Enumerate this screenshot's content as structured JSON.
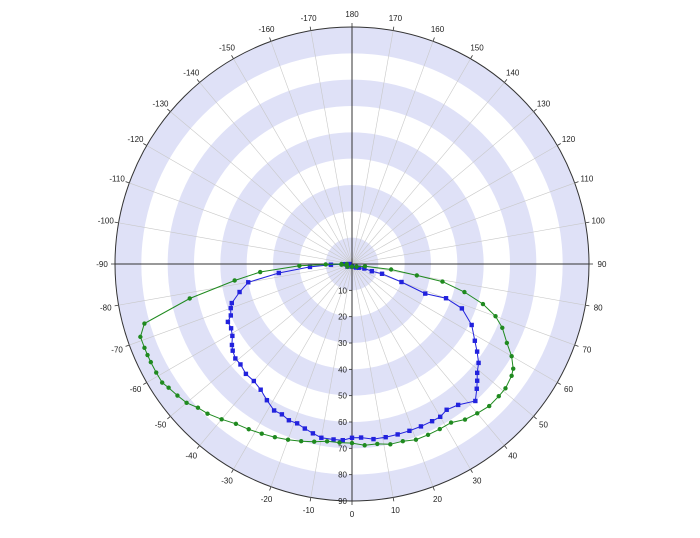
{
  "chart_data": {
    "type": "polar-line",
    "title": "",
    "angular_axis": {
      "zero_direction": "bottom",
      "direction": "counterclockwise for positive",
      "ticks": [
        -170,
        -160,
        -150,
        -140,
        -130,
        -120,
        -110,
        -100,
        -90,
        -80,
        -70,
        -60,
        -50,
        -40,
        -30,
        -20,
        -10,
        0,
        10,
        20,
        30,
        40,
        50,
        60,
        70,
        80,
        90,
        100,
        110,
        120,
        130,
        140,
        150,
        160,
        170,
        180
      ],
      "tick_labels": [
        "-170",
        "-160",
        "-150",
        "-140",
        "-130",
        "-120",
        "-110",
        "-100",
        "-90",
        "-80",
        "-70",
        "-60",
        "-50",
        "-40",
        "-30",
        "-20",
        "-10",
        "0",
        "10",
        "20",
        "30",
        "40",
        "50",
        "60",
        "70",
        "80",
        "90",
        "100",
        "110",
        "120",
        "130",
        "140",
        "150",
        "160",
        "170",
        "180"
      ]
    },
    "radial_axis": {
      "range": [
        0,
        90
      ],
      "direction": "increasing outward",
      "ticks": [
        10,
        20,
        30,
        40,
        50,
        60,
        70,
        80,
        90
      ],
      "tick_labels": [
        "10",
        "20",
        "30",
        "40",
        "50",
        "60",
        "70",
        "80",
        "90"
      ],
      "bands": "alternating lavender and white rings every 10"
    },
    "grid": true,
    "legend": "none",
    "colors": {
      "band": "#dfe1f7",
      "grid": "#c8c8c8",
      "axis": "#333333"
    },
    "series": [
      {
        "color": "#2222dd",
        "marker": "square",
        "points": [
          [
            -90,
            1
          ],
          [
            -84,
            2
          ],
          [
            -60,
            2
          ],
          [
            0,
            1
          ],
          [
            48,
            2
          ],
          [
            62,
            3
          ],
          [
            70,
            5
          ],
          [
            70,
            8
          ],
          [
            72,
            12
          ],
          [
            70,
            20
          ],
          [
            68,
            30
          ],
          [
            70,
            38
          ],
          [
            68,
            45
          ],
          [
            63,
            51
          ],
          [
            58,
            55
          ],
          [
            55,
            58
          ],
          [
            52,
            61
          ],
          [
            49,
            63
          ],
          [
            47,
            65
          ],
          [
            45,
            67
          ],
          [
            42,
            70
          ],
          [
            37,
            67
          ],
          [
            33,
            66
          ],
          [
            30,
            67
          ],
          [
            27,
            67
          ],
          [
            23,
            67
          ],
          [
            19,
            67
          ],
          [
            15,
            67
          ],
          [
            11,
            67
          ],
          [
            7,
            67
          ],
          [
            3,
            66
          ],
          [
            0,
            66
          ],
          [
            -3,
            67
          ],
          [
            -6,
            67
          ],
          [
            -10,
            67
          ],
          [
            -13,
            66
          ],
          [
            -16,
            65
          ],
          [
            -19,
            64
          ],
          [
            -22,
            64
          ],
          [
            -25,
            63
          ],
          [
            -28,
            63
          ],
          [
            -32,
            61
          ],
          [
            -36,
            59
          ],
          [
            -40,
            58
          ],
          [
            -44,
            58
          ],
          [
            -48,
            57
          ],
          [
            -51,
            57
          ],
          [
            -54,
            56
          ],
          [
            -56,
            55
          ],
          [
            -59,
            53
          ],
          [
            -62,
            52
          ],
          [
            -65,
            52
          ],
          [
            -67,
            50
          ],
          [
            -70,
            49
          ],
          [
            -72,
            48
          ],
          [
            -76,
            44
          ],
          [
            -80,
            40
          ],
          [
            -83,
            28
          ],
          [
            -86,
            16
          ],
          [
            -88,
            8
          ],
          [
            -89,
            3
          ]
        ]
      },
      {
        "color": "#1f8a1f",
        "marker": "circle",
        "points": [
          [
            -90,
            2
          ],
          [
            -86,
            4
          ],
          [
            -60,
            2
          ],
          [
            0,
            1
          ],
          [
            60,
            2
          ],
          [
            80,
            5
          ],
          [
            82,
            15
          ],
          [
            80,
            25
          ],
          [
            79,
            35
          ],
          [
            76,
            44
          ],
          [
            73,
            52
          ],
          [
            70,
            58
          ],
          [
            67,
            62
          ],
          [
            63,
            66
          ],
          [
            60,
            70
          ],
          [
            57,
            73
          ],
          [
            55,
            74
          ],
          [
            51,
            75
          ],
          [
            48,
            75
          ],
          [
            44,
            75
          ],
          [
            40,
            74
          ],
          [
            36,
            73
          ],
          [
            32,
            71
          ],
          [
            28,
            71
          ],
          [
            24,
            71
          ],
          [
            20,
            71
          ],
          [
            16,
            70
          ],
          [
            12,
            70
          ],
          [
            8,
            69
          ],
          [
            4,
            69
          ],
          [
            0,
            68
          ],
          [
            -4,
            68
          ],
          [
            -8,
            68
          ],
          [
            -12,
            69
          ],
          [
            -16,
            70
          ],
          [
            -20,
            71
          ],
          [
            -24,
            72
          ],
          [
            -28,
            73
          ],
          [
            -32,
            74
          ],
          [
            -36,
            75
          ],
          [
            -40,
            77
          ],
          [
            -44,
            79
          ],
          [
            -47,
            80
          ],
          [
            -50,
            82
          ],
          [
            -53,
            83
          ],
          [
            -56,
            84
          ],
          [
            -58,
            85
          ],
          [
            -61,
            85
          ],
          [
            -64,
            85
          ],
          [
            -66,
            85
          ],
          [
            -68,
            85
          ],
          [
            -71,
            85
          ],
          [
            -74,
            82
          ],
          [
            -78,
            63
          ],
          [
            -82,
            45
          ],
          [
            -85,
            35
          ],
          [
            -88,
            20
          ],
          [
            -89,
            10
          ],
          [
            -90,
            4
          ]
        ]
      }
    ]
  }
}
